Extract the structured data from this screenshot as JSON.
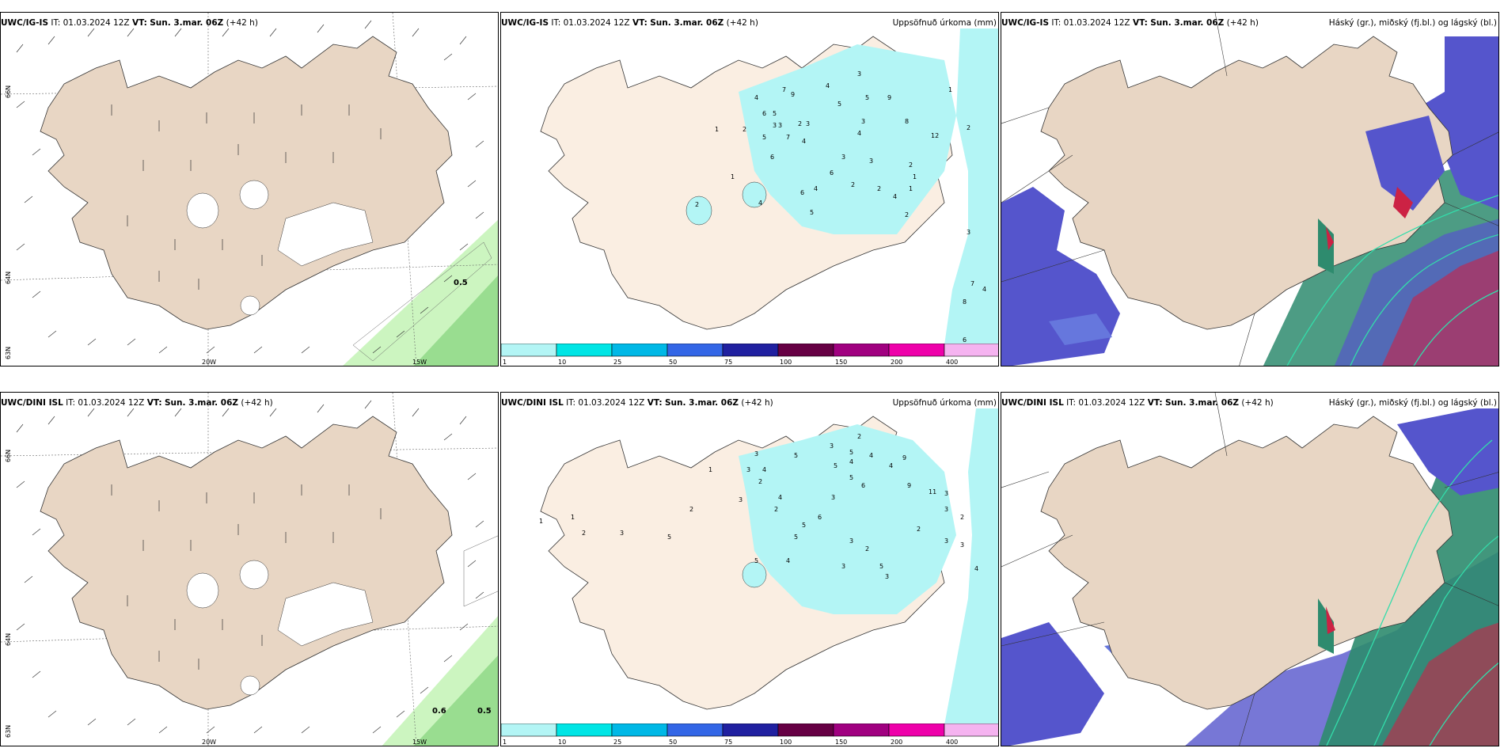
{
  "rows": [
    {
      "model": "UWC/IG-IS",
      "it": "IT: 01.03.2024 12Z",
      "vt_label": "VT:",
      "vt": "Sun. 3.mar. 06Z",
      "lead": "(+42 h)",
      "wind_value_labels": [
        "0.5"
      ],
      "precip_numbers": [
        "3",
        "1",
        "4",
        "7",
        "9",
        "4",
        "5",
        "5",
        "9",
        "2",
        "3",
        "6",
        "5",
        "3",
        "1",
        "2",
        "3",
        "5",
        "7",
        "2",
        "3",
        "4",
        "8",
        "12",
        "2",
        "6",
        "4",
        "3",
        "3",
        "6",
        "1",
        "1",
        "2",
        "4",
        "6",
        "2",
        "4",
        "5",
        "1",
        "2",
        "4",
        "2",
        "3",
        "7",
        "4",
        "8",
        "6",
        "1"
      ]
    },
    {
      "model": "UWC/DINI ISL",
      "it": "IT: 01.03.2024 12Z",
      "vt_label": "VT:",
      "vt": "Sun. 3.mar. 06Z",
      "lead": "(+42 h)",
      "wind_value_labels": [
        "0.6",
        "0.5"
      ],
      "precip_numbers": [
        "2",
        "3",
        "5",
        "3",
        "5",
        "4",
        "1",
        "3",
        "4",
        "4",
        "5",
        "9",
        "4",
        "2",
        "5",
        "6",
        "9",
        "2",
        "4",
        "3",
        "3",
        "11",
        "3",
        "3",
        "2",
        "2",
        "6",
        "5",
        "5",
        "3",
        "2",
        "3",
        "1",
        "1",
        "2",
        "3",
        "5",
        "2",
        "3",
        "5",
        "4",
        "3",
        "5",
        "3",
        "4"
      ]
    }
  ],
  "precip_title": "Uppsöfnuð úrkoma (mm)",
  "cloud_title": "Háský (gr.), miðský (fj.bl.) og lágský (bl.)",
  "grid_labels": {
    "lat_66": "66N",
    "lat_64": "64N",
    "lat_63": "63N",
    "lat_66_right": "66N",
    "lat_64_right": "64N",
    "lon_20": "20W",
    "lon_15": "15W"
  },
  "colorbar": {
    "labels": [
      "1",
      "10",
      "25",
      "50",
      "75",
      "100",
      "150",
      "200",
      "400"
    ],
    "colors": [
      "#b3f5f5",
      "#00e5e5",
      "#00b8e6",
      "#3366e6",
      "#2020a0",
      "#660044",
      "#a00080",
      "#ee00aa",
      "#f5b3f0"
    ]
  },
  "colors": {
    "land": "#e8d6c4",
    "land_light": "#faeee2",
    "sea": "#ffffff",
    "precip_light": "#b3f5f5",
    "wind_green_light": "#ccf5c0",
    "wind_green_mid": "#99dd90",
    "cloud_high": "#5555cc",
    "cloud_high_light": "#6677dd",
    "cloud_mid": "#2e8b6e",
    "cloud_low": "#cc2244",
    "cloud_contour": "#33ddaa"
  }
}
